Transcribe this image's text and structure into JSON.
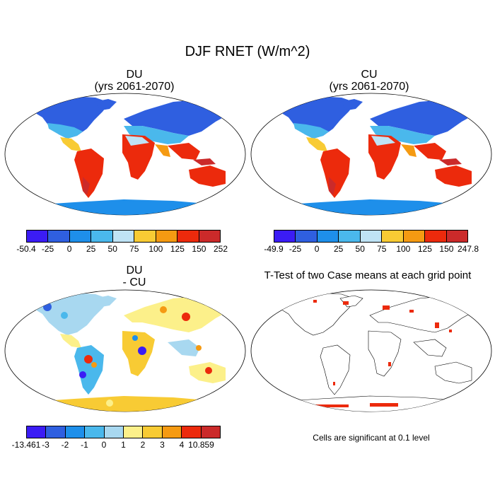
{
  "figure": {
    "title": "DJF RNET (W/m^2)"
  },
  "panels": {
    "du": {
      "title_line1": "DU",
      "title_line2": "(yrs 2061-2070)"
    },
    "cu": {
      "title_line1": "CU",
      "title_line2": "(yrs 2061-2070)"
    },
    "diff": {
      "title_line1": "DU",
      "title_line2": "- CU"
    },
    "ttest": {
      "title": "T-Test of two Case means at each grid point",
      "note": "Cells are significant at 0.1 level"
    }
  },
  "colorbars": {
    "du": {
      "colors": [
        "#3b1cf5",
        "#2f5fe0",
        "#1e8fea",
        "#4ab8ec",
        "#bfe3f5",
        "#f8cb34",
        "#f59a12",
        "#ec2a0c",
        "#cb2a2a"
      ],
      "labels": [
        "-50.4",
        "-25",
        "0",
        "25",
        "50",
        "75",
        "100",
        "125",
        "150",
        "252"
      ]
    },
    "cu": {
      "colors": [
        "#3b1cf5",
        "#2f5fe0",
        "#1e8fea",
        "#4ab8ec",
        "#bfe3f5",
        "#f8cb34",
        "#f59a12",
        "#ec2a0c",
        "#cb2a2a"
      ],
      "labels": [
        "-49.9",
        "-25",
        "0",
        "25",
        "50",
        "75",
        "100",
        "125",
        "150",
        "247.8"
      ]
    },
    "diff": {
      "colors": [
        "#3b1cf5",
        "#2f5fe0",
        "#1e8fea",
        "#4ab8ec",
        "#a8d8f0",
        "#fcf08a",
        "#f8cb34",
        "#f59a12",
        "#ec2a0c",
        "#cb2a2a"
      ],
      "labels": [
        "-13.461",
        "-3",
        "-2",
        "-1",
        "0",
        "1",
        "2",
        "3",
        "4",
        "10.859"
      ]
    }
  }
}
